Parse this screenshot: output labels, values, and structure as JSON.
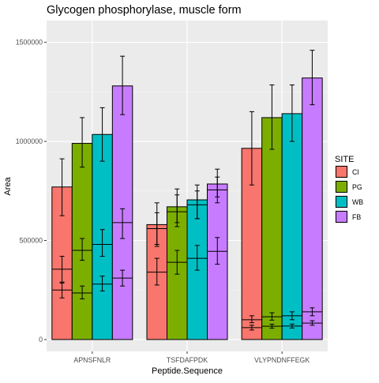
{
  "chart_data": {
    "type": "bar",
    "title": "Glycogen phosphorylase, muscle form",
    "xlabel": "Peptide.Sequence",
    "ylabel": "Area",
    "categories": [
      "APNSFNLR",
      "TSFDAFPDK",
      "VLYPNDNFFEGK"
    ],
    "yticks": [
      0,
      500000,
      1000000,
      1500000
    ],
    "ytick_labels": [
      "0",
      "500000",
      "1000000",
      "1500000"
    ],
    "ylim": [
      -60000,
      1610000
    ],
    "grid": true,
    "legend": {
      "title": "SITE",
      "position": "right"
    },
    "series": [
      {
        "name": "CI",
        "color": "#F8766D",
        "values": [
          770000,
          580000,
          965000
        ],
        "error": [
          [
            625000,
            912000
          ],
          [
            470000,
            690000
          ],
          [
            780000,
            1150000
          ]
        ],
        "sublevels": [
          {
            "value": 355000,
            "error": [
              285000,
              420000
            ]
          },
          {
            "value": 250000,
            "error": [
              210000,
              290000
            ]
          }
        ],
        "sublevels_by_category": [
          [
            {
              "value": 355000,
              "error": [
                285000,
                420000
              ]
            },
            {
              "value": 250000,
              "error": [
                210000,
                290000
              ]
            }
          ],
          [
            {
              "value": 560000,
              "error": [
                480000,
                640000
              ]
            },
            {
              "value": 340000,
              "error": [
                275000,
                410000
              ]
            }
          ],
          [
            {
              "value": 100000,
              "error": [
                85000,
                120000
              ]
            },
            {
              "value": 60000,
              "error": [
                48000,
                72000
              ]
            }
          ]
        ]
      },
      {
        "name": "PG",
        "color": "#7CAE00",
        "values": [
          990000,
          670000,
          1120000
        ],
        "error": [
          [
            870000,
            1120000
          ],
          [
            570000,
            760000
          ],
          [
            960000,
            1285000
          ]
        ],
        "sublevels_by_category": [
          [
            {
              "value": 450000,
              "error": [
                400000,
                510000
              ]
            },
            {
              "value": 235000,
              "error": [
                205000,
                270000
              ]
            }
          ],
          [
            {
              "value": 645000,
              "error": [
                590000,
                730000
              ]
            },
            {
              "value": 390000,
              "error": [
                330000,
                450000
              ]
            }
          ],
          [
            {
              "value": 115000,
              "error": [
                98000,
                135000
              ]
            },
            {
              "value": 67000,
              "error": [
                57000,
                77000
              ]
            }
          ]
        ]
      },
      {
        "name": "WB",
        "color": "#00BFC4",
        "values": [
          1035000,
          705000,
          1140000
        ],
        "error": [
          [
            900000,
            1170000
          ],
          [
            610000,
            780000
          ],
          [
            1000000,
            1285000
          ]
        ],
        "sublevels_by_category": [
          [
            {
              "value": 480000,
              "error": [
                420000,
                555000
              ]
            },
            {
              "value": 280000,
              "error": [
                245000,
                320000
              ]
            }
          ],
          [
            {
              "value": 680000,
              "error": [
                610000,
                750000
              ]
            },
            {
              "value": 410000,
              "error": [
                350000,
                475000
              ]
            }
          ],
          [
            {
              "value": 120000,
              "error": [
                100000,
                140000
              ]
            },
            {
              "value": 68000,
              "error": [
                58000,
                78000
              ]
            }
          ]
        ]
      },
      {
        "name": "FB",
        "color": "#C77CFF",
        "values": [
          1280000,
          785000,
          1320000
        ],
        "error": [
          [
            1135000,
            1430000
          ],
          [
            720000,
            860000
          ],
          [
            1185000,
            1460000
          ]
        ],
        "sublevels_by_category": [
          [
            {
              "value": 590000,
              "error": [
                510000,
                660000
              ]
            },
            {
              "value": 310000,
              "error": [
                270000,
                350000
              ]
            }
          ],
          [
            {
              "value": 755000,
              "error": [
                690000,
                820000
              ]
            },
            {
              "value": 445000,
              "error": [
                380000,
                515000
              ]
            }
          ],
          [
            {
              "value": 140000,
              "error": [
                120000,
                160000
              ]
            },
            {
              "value": 83000,
              "error": [
                72000,
                95000
              ]
            }
          ]
        ]
      }
    ]
  }
}
